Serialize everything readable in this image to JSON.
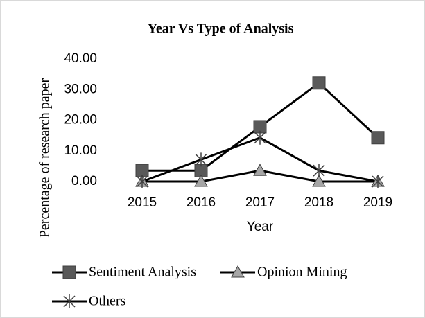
{
  "chart_data": {
    "type": "line",
    "title": "Year Vs Type of Analysis",
    "x_label": "Year",
    "y_label": "Percentage of research paper",
    "categories": [
      "2015",
      "2016",
      "2017",
      "2018",
      "2019"
    ],
    "series": [
      {
        "name": "Sentiment Analysis",
        "color": "#000000",
        "marker": "square",
        "values": [
          3.57,
          3.57,
          17.86,
          32.14,
          14.29
        ]
      },
      {
        "name": "Opinion Mining",
        "color": "#000000",
        "marker": "triangle",
        "values": [
          0,
          0,
          3.57,
          0,
          0
        ]
      },
      {
        "name": "Others",
        "color": "#000000",
        "marker": "star",
        "values": [
          0,
          7.14,
          14.29,
          3.57,
          0
        ]
      }
    ],
    "ylim": [
      0,
      40
    ],
    "yticks": [
      {
        "value": 0,
        "label": "0.00"
      },
      {
        "value": 10,
        "label": "10.00"
      },
      {
        "value": 20,
        "label": "20.00"
      },
      {
        "value": 30,
        "label": "30.00"
      },
      {
        "value": 40,
        "label": "40.00"
      }
    ],
    "grid": false
  }
}
